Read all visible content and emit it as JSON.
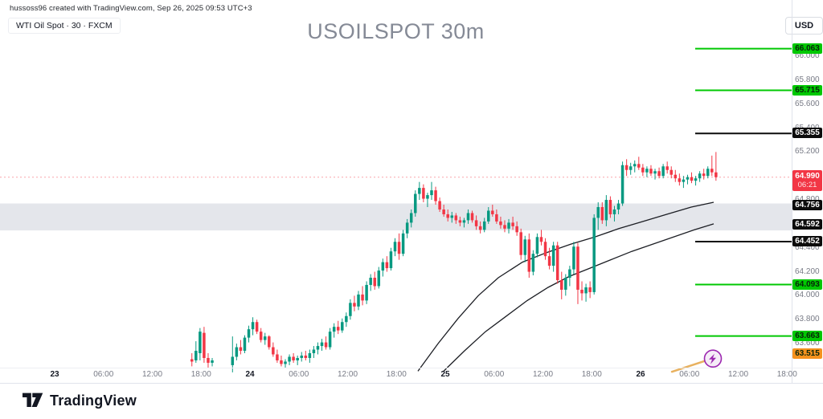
{
  "header": {
    "attribution": "hussoss96 created with TradingView.com, Sep 26, 2025 09:53 UTC+3",
    "legend": "WTI Oil Spot · 30 · FXCM",
    "title": "USOILSPOT 30m",
    "currency_button": "USD"
  },
  "footer": {
    "brand": "TradingView"
  },
  "chart_data": {
    "type": "candlestick",
    "symbol": "USOILSPOT",
    "interval": "30m",
    "exchange": "FXCM",
    "title": "USOILSPOT 30m",
    "grid": false,
    "ylim": [
      63.4,
      66.47
    ],
    "colors": {
      "up": "#089981",
      "down": "#f23645",
      "zone": "#e4e6eb",
      "green_level": "#00c802",
      "black_level": "#0c0c0c",
      "orange": "#f5921e",
      "trend": "#e8b15f",
      "purple": "#9c27b0",
      "purple_fill": "#f5ecf7",
      "axis_text": "#787b86",
      "day_text": "#131722",
      "ma": "#1c1e24"
    },
    "y_axis": {
      "ticks": [
        "66.000",
        "65.800",
        "65.600",
        "65.400",
        "65.200",
        "64.800",
        "64.400",
        "64.200",
        "64.000",
        "63.800",
        "63.600"
      ]
    },
    "x_axis": {
      "labels": [
        {
          "label": "23",
          "bold": true
        },
        {
          "label": "06:00",
          "bold": false
        },
        {
          "label": "12:00",
          "bold": false
        },
        {
          "label": "18:00",
          "bold": false
        },
        {
          "label": "24",
          "bold": true
        },
        {
          "label": "06:00",
          "bold": false
        },
        {
          "label": "12:00",
          "bold": false
        },
        {
          "label": "18:00",
          "bold": false
        },
        {
          "label": "25",
          "bold": true
        },
        {
          "label": "06:00",
          "bold": false
        },
        {
          "label": "12:00",
          "bold": false
        },
        {
          "label": "18:00",
          "bold": false
        },
        {
          "label": "26",
          "bold": true
        },
        {
          "label": "06:00",
          "bold": false
        },
        {
          "label": "12:00",
          "bold": false
        },
        {
          "label": "18:00",
          "bold": false
        }
      ]
    },
    "levels": [
      {
        "price": 66.063,
        "label": "66.063",
        "style": "green",
        "ray": true
      },
      {
        "price": 65.715,
        "label": "65.715",
        "style": "green",
        "ray": true
      },
      {
        "price": 65.355,
        "label": "65.355",
        "style": "black",
        "ray": true
      },
      {
        "price": 64.756,
        "label": "64.756",
        "style": "black",
        "ray": false
      },
      {
        "price": 64.592,
        "label": "64.592",
        "style": "black",
        "ray": false
      },
      {
        "price": 64.452,
        "label": "64.452",
        "style": "black",
        "ray": true
      },
      {
        "price": 64.093,
        "label": "64.093",
        "style": "green",
        "ray": true
      },
      {
        "price": 63.663,
        "label": "63.663",
        "style": "green",
        "ray": true
      },
      {
        "price": 63.515,
        "label": "63.515",
        "style": "orange",
        "ray": false
      }
    ],
    "zone": {
      "top": 64.77,
      "bottom": 64.545
    },
    "current_price": {
      "value": "64.990",
      "price": 64.99,
      "countdown": "06:21"
    },
    "trend_line": {
      "x1": 836,
      "p1": 63.365,
      "x2": 877,
      "p2": 63.455,
      "icon": "lightning-icon",
      "icon_x": 887,
      "icon_p": 63.475
    },
    "ma_curves": [
      {
        "name": "ma-upper",
        "points": [
          [
            520,
            63.37
          ],
          [
            545,
            63.6
          ],
          [
            570,
            63.81
          ],
          [
            595,
            64.0
          ],
          [
            620,
            64.15
          ],
          [
            650,
            64.28
          ],
          [
            680,
            64.36
          ],
          [
            710,
            64.43
          ],
          [
            740,
            64.49
          ],
          [
            770,
            64.56
          ],
          [
            800,
            64.62
          ],
          [
            830,
            64.68
          ],
          [
            860,
            64.74
          ],
          [
            888,
            64.78
          ]
        ]
      },
      {
        "name": "ma-lower",
        "points": [
          [
            552,
            63.37
          ],
          [
            578,
            63.54
          ],
          [
            604,
            63.7
          ],
          [
            630,
            63.83
          ],
          [
            656,
            63.96
          ],
          [
            682,
            64.07
          ],
          [
            708,
            64.16
          ],
          [
            734,
            64.23
          ],
          [
            760,
            64.3
          ],
          [
            786,
            64.37
          ],
          [
            812,
            64.43
          ],
          [
            838,
            64.49
          ],
          [
            864,
            64.55
          ],
          [
            888,
            64.6
          ]
        ]
      }
    ],
    "candles": [
      [
        63.47,
        63.52,
        63.41,
        63.45
      ],
      [
        63.46,
        63.62,
        63.44,
        63.54
      ],
      [
        63.52,
        63.73,
        63.46,
        63.7
      ],
      [
        63.69,
        63.74,
        63.44,
        63.48
      ],
      [
        63.48,
        63.52,
        63.4,
        63.44
      ],
      [
        63.44,
        63.48,
        63.41,
        63.46
      ],
      null,
      null,
      null,
      null,
      [
        63.42,
        63.66,
        63.36,
        63.49
      ],
      [
        63.49,
        63.6,
        63.46,
        63.57
      ],
      [
        63.57,
        63.63,
        63.51,
        63.54
      ],
      [
        63.54,
        63.67,
        63.52,
        63.65
      ],
      [
        63.65,
        63.75,
        63.61,
        63.72
      ],
      [
        63.72,
        63.82,
        63.67,
        63.78
      ],
      [
        63.78,
        63.8,
        63.68,
        63.7
      ],
      [
        63.7,
        63.73,
        63.61,
        63.63
      ],
      [
        63.63,
        63.69,
        63.59,
        63.66
      ],
      [
        63.66,
        63.67,
        63.55,
        63.57
      ],
      [
        63.57,
        63.61,
        63.49,
        63.51
      ],
      [
        63.51,
        63.55,
        63.44,
        63.46
      ],
      [
        63.46,
        63.5,
        63.41,
        63.43
      ],
      [
        63.43,
        63.47,
        63.4,
        63.45
      ],
      [
        63.45,
        63.51,
        63.42,
        63.49
      ],
      [
        63.49,
        63.52,
        63.44,
        63.46
      ],
      [
        63.46,
        63.5,
        63.42,
        63.48
      ],
      [
        63.48,
        63.53,
        63.45,
        63.5
      ],
      [
        63.5,
        63.54,
        63.46,
        63.48
      ],
      [
        63.48,
        63.55,
        63.44,
        63.52
      ],
      [
        63.52,
        63.58,
        63.48,
        63.55
      ],
      [
        63.55,
        63.61,
        63.51,
        63.58
      ],
      [
        63.58,
        63.64,
        63.54,
        63.61
      ],
      [
        63.61,
        63.66,
        63.55,
        63.57
      ],
      [
        63.57,
        63.73,
        63.55,
        63.7
      ],
      [
        63.7,
        63.77,
        63.65,
        63.74
      ],
      [
        63.74,
        63.79,
        63.68,
        63.71
      ],
      [
        63.71,
        63.81,
        63.69,
        63.78
      ],
      [
        63.78,
        63.86,
        63.74,
        63.83
      ],
      [
        63.83,
        63.97,
        63.8,
        63.94
      ],
      [
        63.94,
        64.0,
        63.87,
        63.91
      ],
      [
        63.91,
        64.04,
        63.88,
        64.01
      ],
      [
        64.01,
        64.08,
        63.92,
        63.96
      ],
      [
        63.96,
        64.12,
        63.93,
        64.09
      ],
      [
        64.09,
        64.18,
        64.04,
        64.15
      ],
      [
        64.15,
        64.2,
        64.05,
        64.08
      ],
      [
        64.08,
        64.24,
        64.06,
        64.21
      ],
      [
        64.21,
        64.31,
        64.16,
        64.28
      ],
      [
        64.28,
        64.33,
        64.2,
        64.23
      ],
      [
        64.23,
        64.4,
        64.21,
        64.37
      ],
      [
        64.37,
        64.48,
        64.33,
        64.45
      ],
      [
        64.45,
        64.52,
        64.3,
        64.35
      ],
      [
        64.35,
        64.55,
        64.33,
        64.52
      ],
      [
        64.52,
        64.64,
        64.48,
        64.61
      ],
      [
        64.61,
        64.72,
        64.57,
        64.69
      ],
      [
        64.69,
        64.88,
        64.66,
        64.85
      ],
      [
        64.85,
        64.95,
        64.8,
        64.9
      ],
      [
        64.9,
        64.93,
        64.78,
        64.81
      ],
      [
        64.81,
        64.86,
        64.74,
        64.84
      ],
      [
        64.84,
        64.95,
        64.8,
        64.88
      ],
      [
        64.88,
        64.91,
        64.76,
        64.79
      ],
      [
        64.79,
        64.82,
        64.7,
        64.72
      ],
      [
        64.72,
        64.76,
        64.66,
        64.68
      ],
      [
        64.68,
        64.72,
        64.62,
        64.65
      ],
      [
        64.65,
        64.7,
        64.61,
        64.67
      ],
      [
        64.67,
        64.69,
        64.6,
        64.63
      ],
      [
        64.63,
        64.66,
        64.58,
        64.61
      ],
      [
        64.61,
        64.65,
        64.57,
        64.63
      ],
      [
        64.63,
        64.72,
        64.6,
        64.69
      ],
      [
        64.69,
        64.71,
        64.61,
        64.63
      ],
      [
        64.63,
        64.67,
        64.55,
        64.58
      ],
      [
        64.58,
        64.62,
        64.52,
        64.55
      ],
      [
        64.55,
        64.65,
        64.53,
        64.62
      ],
      [
        64.62,
        64.74,
        64.6,
        64.71
      ],
      [
        64.71,
        64.76,
        64.66,
        64.68
      ],
      [
        64.68,
        64.72,
        64.6,
        64.62
      ],
      [
        64.62,
        64.66,
        64.56,
        64.59
      ],
      [
        64.59,
        64.63,
        64.53,
        64.56
      ],
      [
        64.56,
        64.64,
        64.52,
        64.61
      ],
      [
        64.61,
        64.66,
        64.55,
        64.58
      ],
      [
        64.58,
        64.62,
        64.5,
        64.53
      ],
      [
        64.53,
        64.56,
        64.3,
        64.34
      ],
      [
        64.34,
        64.5,
        64.28,
        64.47
      ],
      [
        64.47,
        64.52,
        64.15,
        64.2
      ],
      [
        64.2,
        64.38,
        64.17,
        64.35
      ],
      [
        64.35,
        64.52,
        64.32,
        64.49
      ],
      [
        64.49,
        64.55,
        64.42,
        64.45
      ],
      [
        64.45,
        64.48,
        64.3,
        64.33
      ],
      [
        64.33,
        64.4,
        64.22,
        64.25
      ],
      [
        64.25,
        64.45,
        64.2,
        64.42
      ],
      [
        64.42,
        64.45,
        64.1,
        64.13
      ],
      [
        64.13,
        64.2,
        63.97,
        64.05
      ],
      [
        64.05,
        64.18,
        64.0,
        64.15
      ],
      [
        64.15,
        64.25,
        64.08,
        64.22
      ],
      [
        64.22,
        64.45,
        64.18,
        64.41
      ],
      [
        64.41,
        64.44,
        63.93,
        64.05
      ],
      [
        64.05,
        64.12,
        63.96,
        64.02
      ],
      [
        64.02,
        64.1,
        63.95,
        64.07
      ],
      [
        64.07,
        64.12,
        63.98,
        64.03
      ],
      [
        64.03,
        64.68,
        64.01,
        64.65
      ],
      [
        64.65,
        64.78,
        64.55,
        64.74
      ],
      [
        64.74,
        64.78,
        64.6,
        64.63
      ],
      [
        64.63,
        64.84,
        64.58,
        64.8
      ],
      [
        64.8,
        64.83,
        64.65,
        64.68
      ],
      [
        64.68,
        64.75,
        64.62,
        64.72
      ],
      [
        64.72,
        64.8,
        64.68,
        64.77
      ],
      [
        64.77,
        65.12,
        64.75,
        65.09
      ],
      [
        65.09,
        65.14,
        65.0,
        65.05
      ],
      [
        65.05,
        65.11,
        65.01,
        65.08
      ],
      [
        65.08,
        65.13,
        65.03,
        65.1
      ],
      [
        65.1,
        65.16,
        65.05,
        65.07
      ],
      [
        65.07,
        65.1,
        65.0,
        65.03
      ],
      [
        65.03,
        65.08,
        64.99,
        65.06
      ],
      [
        65.06,
        65.09,
        65.0,
        65.02
      ],
      [
        65.02,
        65.06,
        64.97,
        65.04
      ],
      [
        65.04,
        65.07,
        64.98,
        65.0
      ],
      [
        65.0,
        65.1,
        64.98,
        65.08
      ],
      [
        65.08,
        65.12,
        65.02,
        65.05
      ],
      [
        65.05,
        65.08,
        64.98,
        65.01
      ],
      [
        65.01,
        65.05,
        64.95,
        64.98
      ],
      [
        64.98,
        65.02,
        64.92,
        64.95
      ],
      [
        64.95,
        65.0,
        64.9,
        64.97
      ],
      [
        64.97,
        65.01,
        64.93,
        64.99
      ],
      [
        64.99,
        65.03,
        64.94,
        64.96
      ],
      [
        64.96,
        65.0,
        64.92,
        64.98
      ],
      [
        64.98,
        65.04,
        64.95,
        65.02
      ],
      [
        65.02,
        65.06,
        64.97,
        65.0
      ],
      [
        65.0,
        65.08,
        64.98,
        65.06
      ],
      [
        65.06,
        65.17,
        65.0,
        65.03
      ],
      [
        65.03,
        65.2,
        64.96,
        64.99
      ]
    ]
  }
}
